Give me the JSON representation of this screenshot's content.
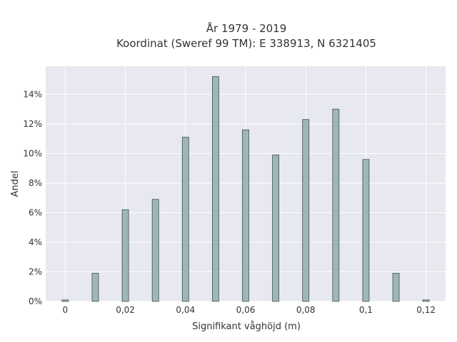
{
  "chart_data": {
    "type": "bar",
    "title_lines": [
      "År 1979 - 2019",
      "Koordinat (Sweref 99 TM): E 338913, N 6321405"
    ],
    "xlabel": "Signifikant våghöjd (m)",
    "ylabel": "Andel",
    "x": [
      0,
      0.01,
      0.02,
      0.03,
      0.04,
      0.05,
      0.06,
      0.07,
      0.08,
      0.09,
      0.1,
      0.11,
      0.12
    ],
    "values": [
      0.1,
      1.9,
      6.2,
      6.9,
      11.1,
      15.2,
      11.6,
      9.9,
      12.3,
      13.0,
      9.6,
      1.9,
      0.1
    ],
    "xlim": [
      -0.0065,
      0.1265
    ],
    "ylim": [
      0,
      15.9
    ],
    "x_ticks": [
      0,
      0.02,
      0.04,
      0.06,
      0.08,
      0.1,
      0.12
    ],
    "x_tick_labels": [
      "0",
      "0,02",
      "0,04",
      "0,06",
      "0,08",
      "0,1",
      "0,12"
    ],
    "y_ticks": [
      0,
      2,
      4,
      6,
      8,
      10,
      12,
      14
    ],
    "y_tick_labels": [
      "0%",
      "2%",
      "4%",
      "6%",
      "8%",
      "10%",
      "12%",
      "14%"
    ],
    "grid": true,
    "colors": {
      "bar_fill": "#9fb6b6",
      "bar_stroke": "#3d4f4f",
      "plot_bg": "#e8e8f0",
      "grid": "#ffffff",
      "text": "#333333"
    }
  }
}
